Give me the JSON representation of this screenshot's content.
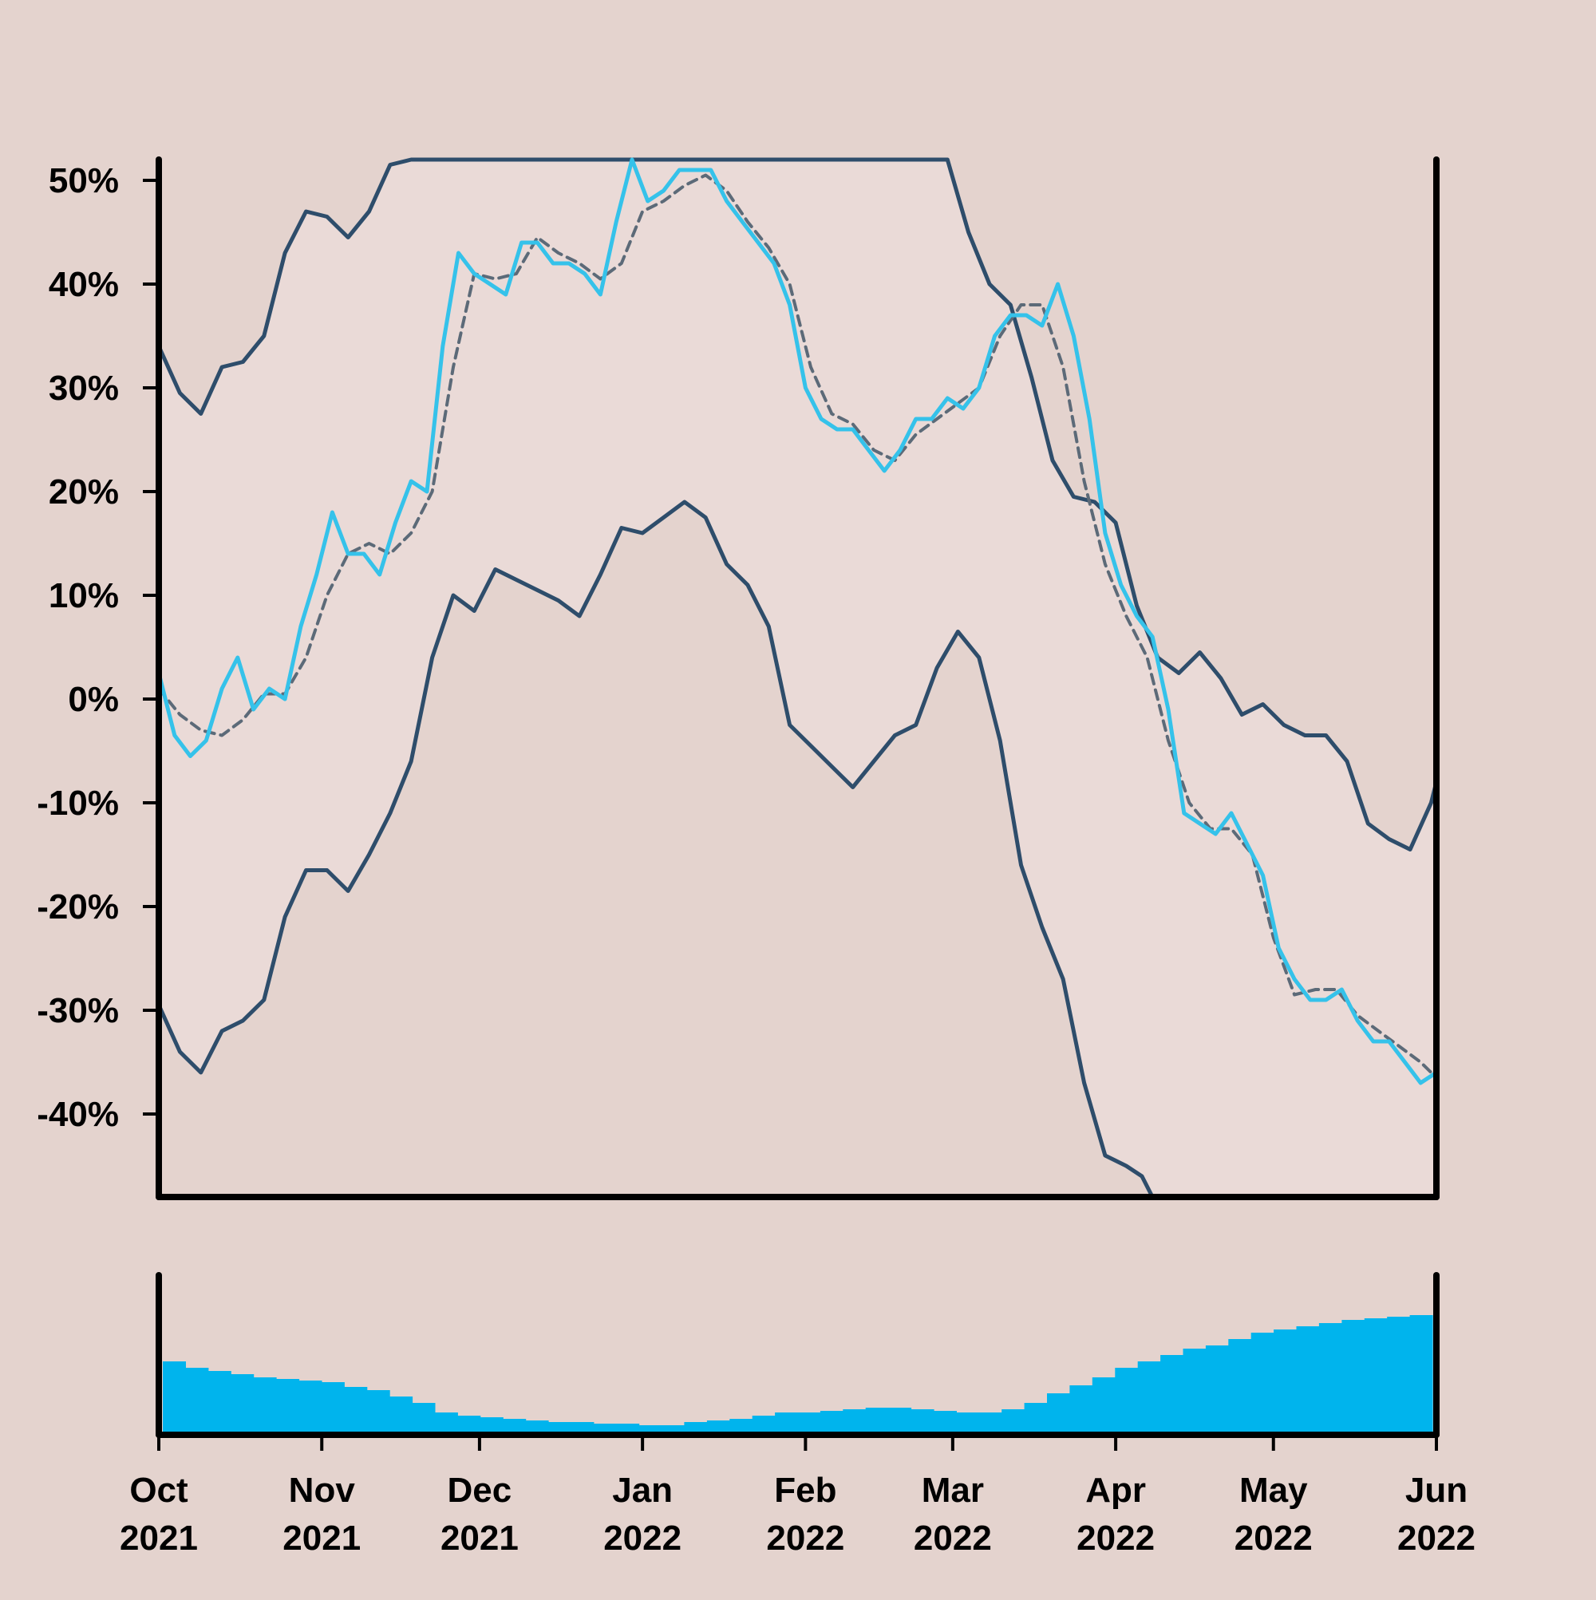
{
  "chart_data": {
    "type": "line",
    "x_range": [
      "2021-10-01",
      "2022-06-01"
    ],
    "ylim": [
      -48,
      52
    ],
    "y_ticks": [
      {
        "value": 50,
        "label": "50%"
      },
      {
        "value": 40,
        "label": "40%"
      },
      {
        "value": 30,
        "label": "30%"
      },
      {
        "value": 20,
        "label": "20%"
      },
      {
        "value": 10,
        "label": "10%"
      },
      {
        "value": 0,
        "label": "0%"
      },
      {
        "value": -10,
        "label": "-10%"
      },
      {
        "value": -20,
        "label": "-20%"
      },
      {
        "value": -30,
        "label": "-30%"
      },
      {
        "value": -40,
        "label": "-40%"
      }
    ],
    "x_ticks": [
      {
        "date": "2021-10-01",
        "month": "Oct",
        "year": "2021"
      },
      {
        "date": "2021-11-01",
        "month": "Nov",
        "year": "2021"
      },
      {
        "date": "2021-12-01",
        "month": "Dec",
        "year": "2021"
      },
      {
        "date": "2022-01-01",
        "month": "Jan",
        "year": "2022"
      },
      {
        "date": "2022-02-01",
        "month": "Feb",
        "year": "2022"
      },
      {
        "date": "2022-03-01",
        "month": "Mar",
        "year": "2022"
      },
      {
        "date": "2022-04-01",
        "month": "Apr",
        "year": "2022"
      },
      {
        "date": "2022-05-01",
        "month": "May",
        "year": "2022"
      },
      {
        "date": "2022-06-01",
        "month": "Jun",
        "year": "2022"
      }
    ],
    "series": [
      {
        "role": "price",
        "color": "#35c2ea",
        "points": [
          [
            "2021-10-01",
            2.5
          ],
          [
            "2021-10-04",
            -3.5
          ],
          [
            "2021-10-07",
            -5.5
          ],
          [
            "2021-10-10",
            -4
          ],
          [
            "2021-10-13",
            1
          ],
          [
            "2021-10-16",
            4
          ],
          [
            "2021-10-19",
            -1
          ],
          [
            "2021-10-22",
            1
          ],
          [
            "2021-10-25",
            0
          ],
          [
            "2021-10-28",
            7
          ],
          [
            "2021-10-31",
            12
          ],
          [
            "2021-11-03",
            18
          ],
          [
            "2021-11-06",
            14
          ],
          [
            "2021-11-09",
            14
          ],
          [
            "2021-11-12",
            12
          ],
          [
            "2021-11-15",
            17
          ],
          [
            "2021-11-18",
            21
          ],
          [
            "2021-11-21",
            20
          ],
          [
            "2021-11-24",
            34
          ],
          [
            "2021-11-27",
            43
          ],
          [
            "2021-11-30",
            41
          ],
          [
            "2021-12-03",
            40
          ],
          [
            "2021-12-06",
            39
          ],
          [
            "2021-12-09",
            44
          ],
          [
            "2021-12-12",
            44
          ],
          [
            "2021-12-15",
            42
          ],
          [
            "2021-12-18",
            42
          ],
          [
            "2021-12-21",
            41
          ],
          [
            "2021-12-24",
            39
          ],
          [
            "2021-12-27",
            46
          ],
          [
            "2021-12-30",
            52
          ],
          [
            "2022-01-02",
            48
          ],
          [
            "2022-01-05",
            49
          ],
          [
            "2022-01-08",
            51
          ],
          [
            "2022-01-11",
            51
          ],
          [
            "2022-01-14",
            51
          ],
          [
            "2022-01-17",
            48
          ],
          [
            "2022-01-20",
            46
          ],
          [
            "2022-01-23",
            44
          ],
          [
            "2022-01-26",
            42
          ],
          [
            "2022-01-29",
            38
          ],
          [
            "2022-02-01",
            30
          ],
          [
            "2022-02-04",
            27
          ],
          [
            "2022-02-07",
            26
          ],
          [
            "2022-02-10",
            26
          ],
          [
            "2022-02-13",
            24
          ],
          [
            "2022-02-16",
            22
          ],
          [
            "2022-02-19",
            24
          ],
          [
            "2022-02-22",
            27
          ],
          [
            "2022-02-25",
            27
          ],
          [
            "2022-02-28",
            29
          ],
          [
            "2022-03-03",
            28
          ],
          [
            "2022-03-06",
            30
          ],
          [
            "2022-03-09",
            35
          ],
          [
            "2022-03-12",
            37
          ],
          [
            "2022-03-15",
            37
          ],
          [
            "2022-03-18",
            36
          ],
          [
            "2022-03-21",
            40
          ],
          [
            "2022-03-24",
            35
          ],
          [
            "2022-03-27",
            27
          ],
          [
            "2022-03-30",
            16
          ],
          [
            "2022-04-02",
            11
          ],
          [
            "2022-04-05",
            8
          ],
          [
            "2022-04-08",
            6
          ],
          [
            "2022-04-11",
            -1
          ],
          [
            "2022-04-14",
            -11
          ],
          [
            "2022-04-17",
            -12
          ],
          [
            "2022-04-20",
            -13
          ],
          [
            "2022-04-23",
            -11
          ],
          [
            "2022-04-26",
            -14
          ],
          [
            "2022-04-29",
            -17
          ],
          [
            "2022-05-02",
            -24
          ],
          [
            "2022-05-05",
            -27
          ],
          [
            "2022-05-08",
            -29
          ],
          [
            "2022-05-11",
            -29
          ],
          [
            "2022-05-14",
            -28
          ],
          [
            "2022-05-17",
            -31
          ],
          [
            "2022-05-20",
            -33
          ],
          [
            "2022-05-23",
            -33
          ],
          [
            "2022-05-26",
            -35
          ],
          [
            "2022-05-29",
            -37
          ],
          [
            "2022-06-01",
            -36
          ]
        ]
      },
      {
        "role": "moving_average",
        "color": "#5c6a78",
        "dashed": true,
        "points": [
          [
            "2021-10-01",
            1
          ],
          [
            "2021-10-05",
            -1.5
          ],
          [
            "2021-10-09",
            -3
          ],
          [
            "2021-10-13",
            -3.5
          ],
          [
            "2021-10-17",
            -2
          ],
          [
            "2021-10-21",
            0.5
          ],
          [
            "2021-10-25",
            0.5
          ],
          [
            "2021-10-29",
            4
          ],
          [
            "2021-11-02",
            10
          ],
          [
            "2021-11-06",
            14
          ],
          [
            "2021-11-10",
            15
          ],
          [
            "2021-11-14",
            14
          ],
          [
            "2021-11-18",
            16
          ],
          [
            "2021-11-22",
            20
          ],
          [
            "2021-11-26",
            32
          ],
          [
            "2021-11-30",
            41
          ],
          [
            "2021-12-04",
            40.5
          ],
          [
            "2021-12-08",
            41
          ],
          [
            "2021-12-12",
            44.5
          ],
          [
            "2021-12-16",
            43
          ],
          [
            "2021-12-20",
            42
          ],
          [
            "2021-12-24",
            40.5
          ],
          [
            "2021-12-28",
            42
          ],
          [
            "2022-01-01",
            47
          ],
          [
            "2022-01-05",
            48
          ],
          [
            "2022-01-09",
            49.5
          ],
          [
            "2022-01-13",
            50.5
          ],
          [
            "2022-01-17",
            49
          ],
          [
            "2022-01-21",
            46
          ],
          [
            "2022-01-25",
            43.5
          ],
          [
            "2022-01-29",
            40
          ],
          [
            "2022-02-02",
            32
          ],
          [
            "2022-02-06",
            27.5
          ],
          [
            "2022-02-10",
            26.5
          ],
          [
            "2022-02-14",
            24
          ],
          [
            "2022-02-18",
            23
          ],
          [
            "2022-02-22",
            25.5
          ],
          [
            "2022-02-26",
            27
          ],
          [
            "2022-03-02",
            28.5
          ],
          [
            "2022-03-06",
            30
          ],
          [
            "2022-03-10",
            35
          ],
          [
            "2022-03-14",
            38
          ],
          [
            "2022-03-18",
            38
          ],
          [
            "2022-03-22",
            32
          ],
          [
            "2022-03-26",
            21
          ],
          [
            "2022-03-30",
            13
          ],
          [
            "2022-04-03",
            8
          ],
          [
            "2022-04-07",
            4
          ],
          [
            "2022-04-11",
            -4
          ],
          [
            "2022-04-15",
            -10
          ],
          [
            "2022-04-19",
            -12.5
          ],
          [
            "2022-04-23",
            -12.5
          ],
          [
            "2022-04-27",
            -15
          ],
          [
            "2022-05-01",
            -23
          ],
          [
            "2022-05-05",
            -28.5
          ],
          [
            "2022-05-09",
            -28
          ],
          [
            "2022-05-13",
            -28
          ],
          [
            "2022-05-17",
            -30.5
          ],
          [
            "2022-05-21",
            -32
          ],
          [
            "2022-05-25",
            -33.5
          ],
          [
            "2022-05-29",
            -35
          ],
          [
            "2022-06-01",
            -36.5
          ]
        ]
      },
      {
        "role": "upper_band",
        "color": "#2e4d6b",
        "points": [
          [
            "2021-10-01",
            34
          ],
          [
            "2021-10-05",
            29.5
          ],
          [
            "2021-10-09",
            27.5
          ],
          [
            "2021-10-13",
            32
          ],
          [
            "2021-10-17",
            32.5
          ],
          [
            "2021-10-21",
            35
          ],
          [
            "2021-10-25",
            43
          ],
          [
            "2021-10-29",
            47
          ],
          [
            "2021-11-02",
            46.5
          ],
          [
            "2021-11-06",
            44.5
          ],
          [
            "2021-11-10",
            47
          ],
          [
            "2021-11-14",
            51.5
          ],
          [
            "2021-11-18",
            52
          ],
          [
            "2022-02-28",
            52
          ],
          [
            "2022-03-04",
            45
          ],
          [
            "2022-03-08",
            40
          ],
          [
            "2022-03-12",
            38
          ],
          [
            "2022-03-16",
            31
          ],
          [
            "2022-03-20",
            23
          ],
          [
            "2022-03-24",
            19.5
          ],
          [
            "2022-03-28",
            19
          ],
          [
            "2022-04-01",
            17
          ],
          [
            "2022-04-05",
            9
          ],
          [
            "2022-04-09",
            4
          ],
          [
            "2022-04-13",
            2.5
          ],
          [
            "2022-04-17",
            4.5
          ],
          [
            "2022-04-21",
            2
          ],
          [
            "2022-04-25",
            -1.5
          ],
          [
            "2022-04-29",
            -0.5
          ],
          [
            "2022-05-03",
            -2.5
          ],
          [
            "2022-05-07",
            -3.5
          ],
          [
            "2022-05-11",
            -3.5
          ],
          [
            "2022-05-15",
            -6
          ],
          [
            "2022-05-19",
            -12
          ],
          [
            "2022-05-23",
            -13.5
          ],
          [
            "2022-05-27",
            -14.5
          ],
          [
            "2022-05-31",
            -10
          ],
          [
            "2022-06-01",
            -8
          ]
        ]
      },
      {
        "role": "lower_band",
        "color": "#2e4d6b",
        "points": [
          [
            "2021-10-01",
            -29.5
          ],
          [
            "2021-10-05",
            -34
          ],
          [
            "2021-10-09",
            -36
          ],
          [
            "2021-10-13",
            -32
          ],
          [
            "2021-10-17",
            -31
          ],
          [
            "2021-10-21",
            -29
          ],
          [
            "2021-10-25",
            -21
          ],
          [
            "2021-10-29",
            -16.5
          ],
          [
            "2021-11-02",
            -16.5
          ],
          [
            "2021-11-06",
            -18.5
          ],
          [
            "2021-11-10",
            -15
          ],
          [
            "2021-11-14",
            -11
          ],
          [
            "2021-11-18",
            -6
          ],
          [
            "2021-11-22",
            4
          ],
          [
            "2021-11-26",
            10
          ],
          [
            "2021-11-30",
            8.5
          ],
          [
            "2021-12-04",
            12.5
          ],
          [
            "2021-12-08",
            11.5
          ],
          [
            "2021-12-12",
            10.5
          ],
          [
            "2021-12-16",
            9.5
          ],
          [
            "2021-12-20",
            8
          ],
          [
            "2021-12-24",
            12
          ],
          [
            "2021-12-28",
            16.5
          ],
          [
            "2022-01-01",
            16
          ],
          [
            "2022-01-05",
            17.5
          ],
          [
            "2022-01-09",
            19
          ],
          [
            "2022-01-13",
            17.5
          ],
          [
            "2022-01-17",
            13
          ],
          [
            "2022-01-21",
            11
          ],
          [
            "2022-01-25",
            7
          ],
          [
            "2022-01-29",
            -2.5
          ],
          [
            "2022-02-02",
            -4.5
          ],
          [
            "2022-02-06",
            -6.5
          ],
          [
            "2022-02-10",
            -8.5
          ],
          [
            "2022-02-14",
            -6
          ],
          [
            "2022-02-18",
            -3.5
          ],
          [
            "2022-02-22",
            -2.5
          ],
          [
            "2022-02-26",
            3
          ],
          [
            "2022-03-02",
            6.5
          ],
          [
            "2022-03-06",
            4
          ],
          [
            "2022-03-10",
            -4
          ],
          [
            "2022-03-14",
            -16
          ],
          [
            "2022-03-18",
            -22
          ],
          [
            "2022-03-22",
            -27
          ],
          [
            "2022-03-26",
            -37
          ],
          [
            "2022-03-30",
            -44
          ],
          [
            "2022-04-03",
            -45
          ],
          [
            "2022-04-06",
            -46
          ],
          [
            "2022-04-08",
            -48
          ]
        ]
      }
    ],
    "volume": {
      "color": "#00b4ed",
      "values": [
        0.46,
        0.42,
        0.4,
        0.38,
        0.36,
        0.35,
        0.34,
        0.33,
        0.3,
        0.28,
        0.24,
        0.2,
        0.14,
        0.12,
        0.11,
        0.1,
        0.09,
        0.08,
        0.08,
        0.07,
        0.07,
        0.06,
        0.06,
        0.08,
        0.09,
        0.1,
        0.12,
        0.14,
        0.14,
        0.15,
        0.16,
        0.17,
        0.17,
        0.16,
        0.15,
        0.14,
        0.14,
        0.16,
        0.2,
        0.26,
        0.31,
        0.36,
        0.42,
        0.46,
        0.5,
        0.54,
        0.56,
        0.6,
        0.64,
        0.66,
        0.68,
        0.7,
        0.72,
        0.73,
        0.74,
        0.75
      ]
    }
  }
}
